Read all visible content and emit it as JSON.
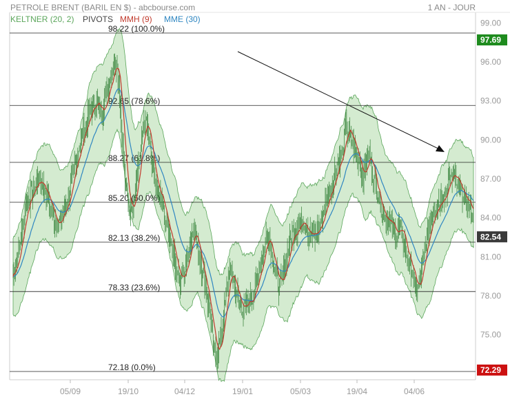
{
  "header": {
    "title": "PETROLE BRENT (BARIL EN $) - abcbourse.com",
    "period": "1 AN - JOUR"
  },
  "legend": [
    {
      "label": "KELTNER (20, 2)",
      "color": "#5aa55a"
    },
    {
      "label": "PIVOTS",
      "color": "#444444"
    },
    {
      "label": "MMH (9)",
      "color": "#c0392b"
    },
    {
      "label": "MME (30)",
      "color": "#2e86c1"
    }
  ],
  "colors": {
    "keltner_fill": "#cde8c8",
    "keltner_line": "#5aa55a",
    "mmh": "#c0392b",
    "mme": "#2e86c1",
    "candle": "#2e7d32",
    "badge_green": "#1e8b1e",
    "badge_red": "#cc1111"
  },
  "chart_data": {
    "type": "line",
    "ylim": [
      72.18,
      98.22
    ],
    "y_ticks": [
      "99.00",
      "96.00",
      "93.00",
      "90.00",
      "87.00",
      "84.00",
      "81.00",
      "78.00",
      "75.00"
    ],
    "x_ticks": [
      "05/09",
      "19/10",
      "04/12",
      "19/01",
      "05/03",
      "19/04",
      "04/06"
    ],
    "fib_levels": [
      {
        "label": "98.22 (100.0%)",
        "value": 98.22
      },
      {
        "label": "92.65 (78.6%)",
        "value": 92.65
      },
      {
        "label": "88.27 (61.8%)",
        "value": 88.27
      },
      {
        "label": "85.20 (50.0%)",
        "value": 85.2
      },
      {
        "label": "82.13 (38.2%)",
        "value": 82.13
      },
      {
        "label": "78.33 (23.6%)",
        "value": 78.33
      },
      {
        "label": "72.18 (0.0%)",
        "value": 72.18
      }
    ],
    "badges": [
      {
        "label": "97.69",
        "value": 97.69,
        "color": "#1e8b1e"
      },
      {
        "label": "82.54",
        "value": 82.54,
        "color": "#3a3a3a"
      },
      {
        "label": "72.29",
        "value": 72.29,
        "color": "#cc1111"
      }
    ],
    "trend_arrow": {
      "from": [
        0.1,
        88.8
      ],
      "to": [
        0.3,
        67.0
      ]
    },
    "price_keypoints": [
      [
        0,
        79.5
      ],
      [
        10,
        82.5
      ],
      [
        16,
        85.0
      ],
      [
        24,
        86.0
      ],
      [
        32,
        87.0
      ],
      [
        38,
        86.5
      ],
      [
        44,
        85.5
      ],
      [
        52,
        84.0
      ],
      [
        58,
        83.5
      ],
      [
        64,
        84.5
      ],
      [
        72,
        86.0
      ],
      [
        80,
        88.5
      ],
      [
        88,
        90.5
      ],
      [
        94,
        91.5
      ],
      [
        100,
        92.5
      ],
      [
        106,
        93.0
      ],
      [
        112,
        92.0
      ],
      [
        118,
        93.5
      ],
      [
        124,
        95.0
      ],
      [
        130,
        96.5
      ],
      [
        134,
        94.5
      ],
      [
        138,
        90.5
      ],
      [
        142,
        86.5
      ],
      [
        148,
        84.5
      ],
      [
        154,
        86.0
      ],
      [
        160,
        88.5
      ],
      [
        164,
        90.5
      ],
      [
        168,
        91.5
      ],
      [
        172,
        90.0
      ],
      [
        176,
        88.0
      ],
      [
        182,
        86.0
      ],
      [
        188,
        85.5
      ],
      [
        194,
        83.5
      ],
      [
        200,
        82.5
      ],
      [
        206,
        80.5
      ],
      [
        212,
        79.0
      ],
      [
        218,
        80.0
      ],
      [
        224,
        82.0
      ],
      [
        230,
        83.5
      ],
      [
        234,
        81.5
      ],
      [
        238,
        80.5
      ],
      [
        242,
        79.5
      ],
      [
        246,
        78.0
      ],
      [
        250,
        76.5
      ],
      [
        254,
        74.0
      ],
      [
        258,
        73.5
      ],
      [
        262,
        74.5
      ],
      [
        266,
        76.0
      ],
      [
        270,
        78.0
      ],
      [
        274,
        80.0
      ],
      [
        278,
        79.5
      ],
      [
        282,
        78.5
      ],
      [
        286,
        77.5
      ],
      [
        292,
        77.0
      ],
      [
        298,
        77.5
      ],
      [
        304,
        78.0
      ],
      [
        310,
        79.5
      ],
      [
        316,
        81.0
      ],
      [
        322,
        83.0
      ],
      [
        326,
        82.0
      ],
      [
        332,
        80.0
      ],
      [
        338,
        78.5
      ],
      [
        344,
        80.0
      ],
      [
        350,
        82.0
      ],
      [
        356,
        83.0
      ],
      [
        362,
        83.5
      ],
      [
        368,
        84.0
      ],
      [
        374,
        83.0
      ],
      [
        380,
        82.5
      ],
      [
        386,
        83.0
      ],
      [
        392,
        84.0
      ],
      [
        398,
        85.5
      ],
      [
        404,
        86.5
      ],
      [
        410,
        88.0
      ],
      [
        414,
        88.5
      ],
      [
        418,
        89.0
      ],
      [
        422,
        91.0
      ],
      [
        426,
        90.5
      ],
      [
        432,
        89.5
      ],
      [
        438,
        88.5
      ],
      [
        444,
        87.0
      ],
      [
        448,
        88.5
      ],
      [
        452,
        89.0
      ],
      [
        456,
        87.5
      ],
      [
        462,
        86.0
      ],
      [
        468,
        84.5
      ],
      [
        474,
        84.0
      ],
      [
        480,
        83.5
      ],
      [
        486,
        82.5
      ],
      [
        490,
        83.5
      ],
      [
        494,
        82.5
      ],
      [
        500,
        81.0
      ],
      [
        506,
        80.0
      ],
      [
        510,
        78.5
      ],
      [
        514,
        78.5
      ],
      [
        518,
        80.0
      ],
      [
        524,
        82.0
      ],
      [
        530,
        84.0
      ],
      [
        536,
        85.0
      ],
      [
        542,
        85.5
      ],
      [
        548,
        86.0
      ],
      [
        554,
        87.0
      ],
      [
        560,
        87.5
      ],
      [
        566,
        86.5
      ],
      [
        570,
        85.5
      ],
      [
        576,
        85.0
      ],
      [
        580,
        84.8
      ],
      [
        584,
        83.8
      ]
    ]
  }
}
